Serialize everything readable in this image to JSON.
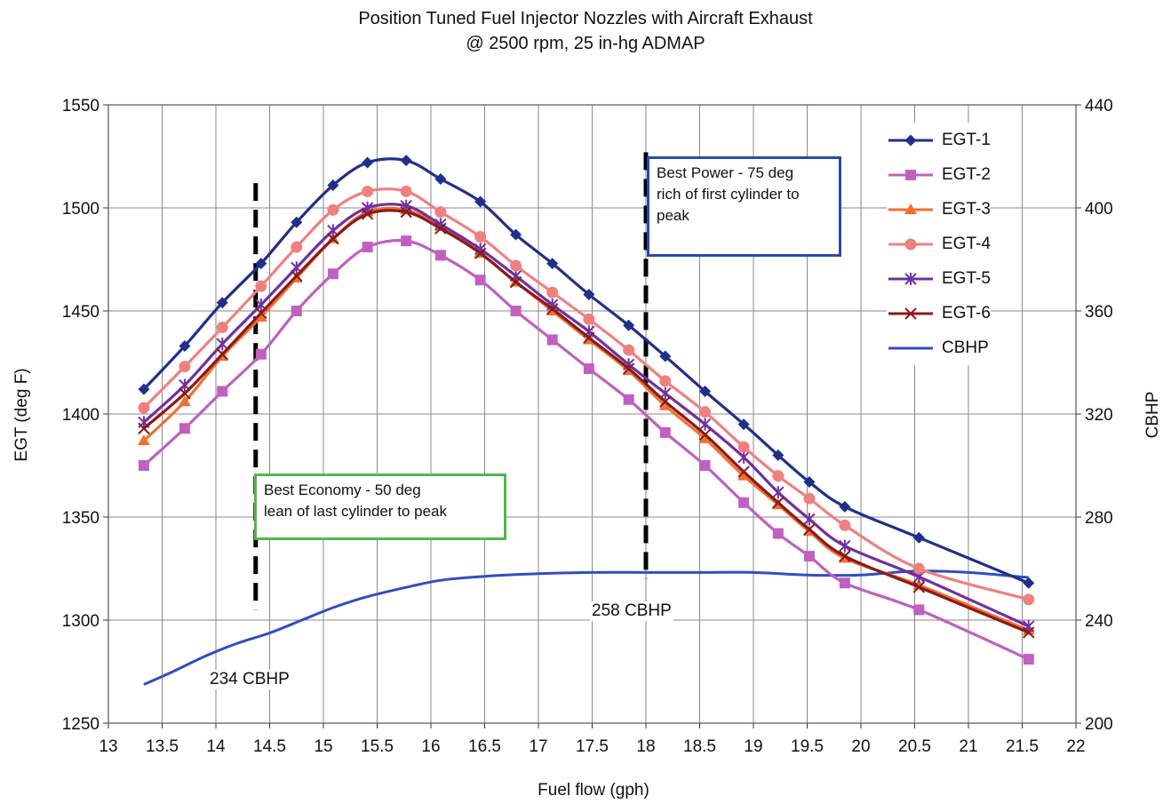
{
  "chart_data": {
    "type": "line",
    "title": "Position Tuned Fuel Injector Nozzles with Aircraft Exhaust",
    "subtitle": "@ 2500 rpm, 25 in-hg ADMAP",
    "xlabel": "Fuel flow (gph)",
    "ylabel": "EGT (deg F)",
    "y2label": "CBHP",
    "xlim": [
      13,
      22
    ],
    "ylim": [
      1250,
      1550
    ],
    "y2lim": [
      200,
      440
    ],
    "xticks": [
      "13",
      "13.5",
      "14",
      "14.5",
      "15",
      "15.5",
      "16",
      "16.5",
      "17",
      "17.5",
      "18",
      "18.5",
      "19",
      "19.5",
      "20",
      "20.5",
      "21",
      "21.5",
      "22"
    ],
    "yticks": [
      "1250",
      "1300",
      "1350",
      "1400",
      "1450",
      "1500",
      "1550"
    ],
    "y2ticks": [
      "200",
      "240",
      "280",
      "320",
      "360",
      "400",
      "440"
    ],
    "grid": true,
    "legend_position": "top-right",
    "x": [
      13.33,
      13.71,
      14.06,
      14.42,
      14.75,
      15.09,
      15.41,
      15.77,
      16.09,
      16.46,
      16.79,
      17.13,
      17.47,
      17.84,
      18.18,
      18.55,
      18.91,
      19.23,
      19.52,
      19.85,
      20.54,
      21.56
    ],
    "series": [
      {
        "name": "EGT-1",
        "color": "#1f2f8c",
        "marker": "diamond",
        "values": [
          1412,
          1433,
          1454,
          1473,
          1493,
          1511,
          1522,
          1523,
          1514,
          1503,
          1487,
          1473,
          1458,
          1443,
          1428,
          1411,
          1395,
          1380,
          1367,
          1355,
          1340,
          1318
        ]
      },
      {
        "name": "EGT-2",
        "color": "#c060c0",
        "marker": "square",
        "values": [
          1375,
          1393,
          1411,
          1429,
          1450,
          1468,
          1481,
          1484,
          1477,
          1465,
          1450,
          1436,
          1422,
          1407,
          1391,
          1375,
          1357,
          1342,
          1331,
          1318,
          1305,
          1281
        ]
      },
      {
        "name": "EGT-3",
        "color": "#f07030",
        "marker": "triangle",
        "values": [
          1387,
          1406,
          1428,
          1447,
          1466,
          1485,
          1498,
          1499,
          1491,
          1478,
          1464,
          1450,
          1436,
          1421,
          1404,
          1388,
          1370,
          1356,
          1343,
          1330,
          1317,
          1295
        ]
      },
      {
        "name": "EGT-4",
        "color": "#f08080",
        "marker": "circle",
        "values": [
          1403,
          1423,
          1442,
          1462,
          1481,
          1499,
          1508,
          1508,
          1498,
          1486,
          1472,
          1459,
          1446,
          1431,
          1416,
          1401,
          1384,
          1370,
          1359,
          1346,
          1325,
          1310
        ]
      },
      {
        "name": "EGT-5",
        "color": "#7030a0",
        "marker": "asterisk",
        "values": [
          1396,
          1414,
          1434,
          1453,
          1471,
          1489,
          1500,
          1501,
          1492,
          1480,
          1467,
          1453,
          1440,
          1424,
          1410,
          1395,
          1379,
          1362,
          1349,
          1336,
          1321,
          1297
        ]
      },
      {
        "name": "EGT-6",
        "color": "#8b1a1a",
        "marker": "x",
        "values": [
          1393,
          1410,
          1429,
          1449,
          1467,
          1485,
          1497,
          1498,
          1490,
          1478,
          1464,
          1451,
          1437,
          1422,
          1406,
          1390,
          1372,
          1357,
          1344,
          1331,
          1316,
          1294
        ]
      },
      {
        "name": "CBHP",
        "color": "#2e4fc0",
        "axis": "right",
        "x": [
          13.33,
          13.6,
          13.9,
          14.2,
          14.5,
          14.8,
          15.1,
          15.4,
          15.8,
          16.1,
          16.5,
          17.0,
          17.5,
          18.0,
          18.5,
          19.0,
          19.5,
          20.0,
          20.5,
          21.0,
          21.56
        ],
        "values": [
          215,
          220,
          226,
          231,
          235,
          240,
          245,
          249,
          253,
          255.5,
          257,
          258,
          258.5,
          258.5,
          258.5,
          258.5,
          257.5,
          257.5,
          259,
          258.5,
          256.5
        ]
      }
    ],
    "annotations": {
      "economy": {
        "x": 14.37,
        "y_range": [
          1305,
          1512
        ],
        "text": [
          "Best Economy - 50 deg",
          "lean of last cylinder to peak"
        ],
        "border": "#50b848"
      },
      "power": {
        "x": 18.0,
        "y_range": [
          1320,
          1527
        ],
        "text": [
          "Best Power - 75 deg",
          "rich of first cylinder to",
          "peak"
        ],
        "border": "#2a4aa8"
      },
      "cbhp_low": "234 CBHP",
      "cbhp_high": "258 CBHP"
    }
  }
}
